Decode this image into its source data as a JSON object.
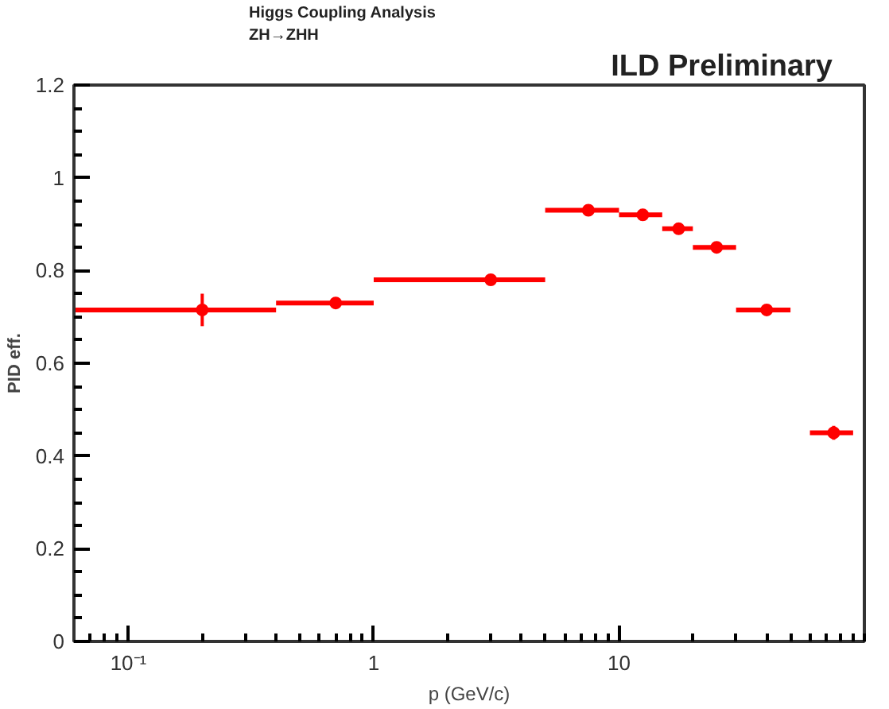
{
  "chart_data": {
    "type": "scatter",
    "title": "ILD Preliminary",
    "annotations": [
      "Higgs Coupling Analysis",
      "ZH→ZHH"
    ],
    "xlabel": "p (GeV/c)",
    "ylabel": "PID eff.",
    "x": [
      0.2,
      0.7,
      3,
      7.5,
      12.5,
      17.5,
      25,
      40,
      75
    ],
    "series": [
      {
        "color": "#ff0000",
        "values": [
          0.715,
          0.73,
          0.78,
          0.93,
          0.92,
          0.89,
          0.85,
          0.715,
          0.45
        ],
        "errors": [
          0.035,
          0.008,
          0.006,
          0.01,
          0.01,
          0.01,
          0.012,
          0.01,
          0.015
        ],
        "xerrors": [
          [
            0.06,
            0.4
          ],
          [
            0.4,
            1
          ],
          [
            1,
            5
          ],
          [
            5,
            10
          ],
          [
            10,
            15
          ],
          [
            15,
            20
          ],
          [
            20,
            30
          ],
          [
            30,
            50
          ],
          [
            60,
            90
          ]
        ]
      }
    ],
    "log": "x",
    "xlim": [
      0.06,
      100
    ],
    "ylim": [
      0,
      1.2
    ],
    "xticks": [
      {
        "value": 0.1,
        "label": "10⁻¹"
      },
      1,
      10
    ],
    "yticks": [
      0,
      0.2,
      0.4,
      0.6,
      0.8,
      1,
      1.2
    ],
    "marker": "circle",
    "grid": false
  }
}
